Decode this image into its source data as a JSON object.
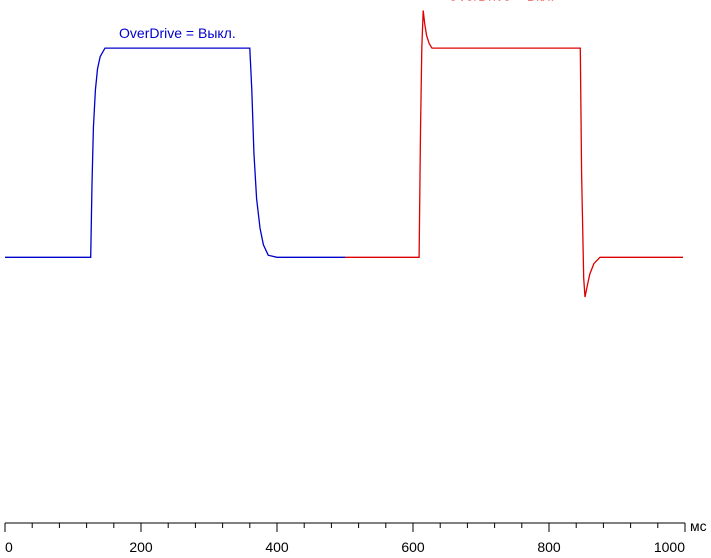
{
  "chart_data": {
    "type": "line",
    "x_unit": "мс",
    "xlim": [
      0,
      1000
    ],
    "xticks": [
      0,
      200,
      400,
      600,
      800,
      1000
    ],
    "xminor_ticks": [
      40,
      80,
      120,
      160,
      240,
      280,
      320,
      360,
      440,
      480,
      520,
      560,
      640,
      680,
      720,
      760,
      840,
      880,
      920,
      960
    ],
    "ylim": [
      -127,
      123
    ],
    "series": [
      {
        "name": "OverDrive = Выкл.",
        "color": "#0000cc",
        "x": [
          0,
          126,
          128,
          130,
          133,
          136,
          140,
          147,
          200,
          300,
          360,
          363,
          366,
          370,
          375,
          380,
          387,
          400,
          500
        ],
        "values": [
          0,
          0,
          35,
          62,
          80,
          90,
          96,
          100,
          100,
          100,
          100,
          80,
          50,
          28,
          14,
          6,
          1,
          0,
          0
        ]
      },
      {
        "name": "OverDrive = Вкл.",
        "color": "#dd0000",
        "x": [
          500,
          609,
          611,
          613,
          615,
          617,
          620,
          624,
          628,
          700,
          800,
          846,
          848,
          851,
          853,
          856,
          860,
          866,
          875,
          900,
          997
        ],
        "values": [
          0,
          0,
          60,
          100,
          118,
          112,
          106,
          102,
          100,
          100,
          100,
          100,
          40,
          -10,
          -19,
          -14,
          -8,
          -3,
          0,
          0,
          0
        ]
      }
    ]
  }
}
